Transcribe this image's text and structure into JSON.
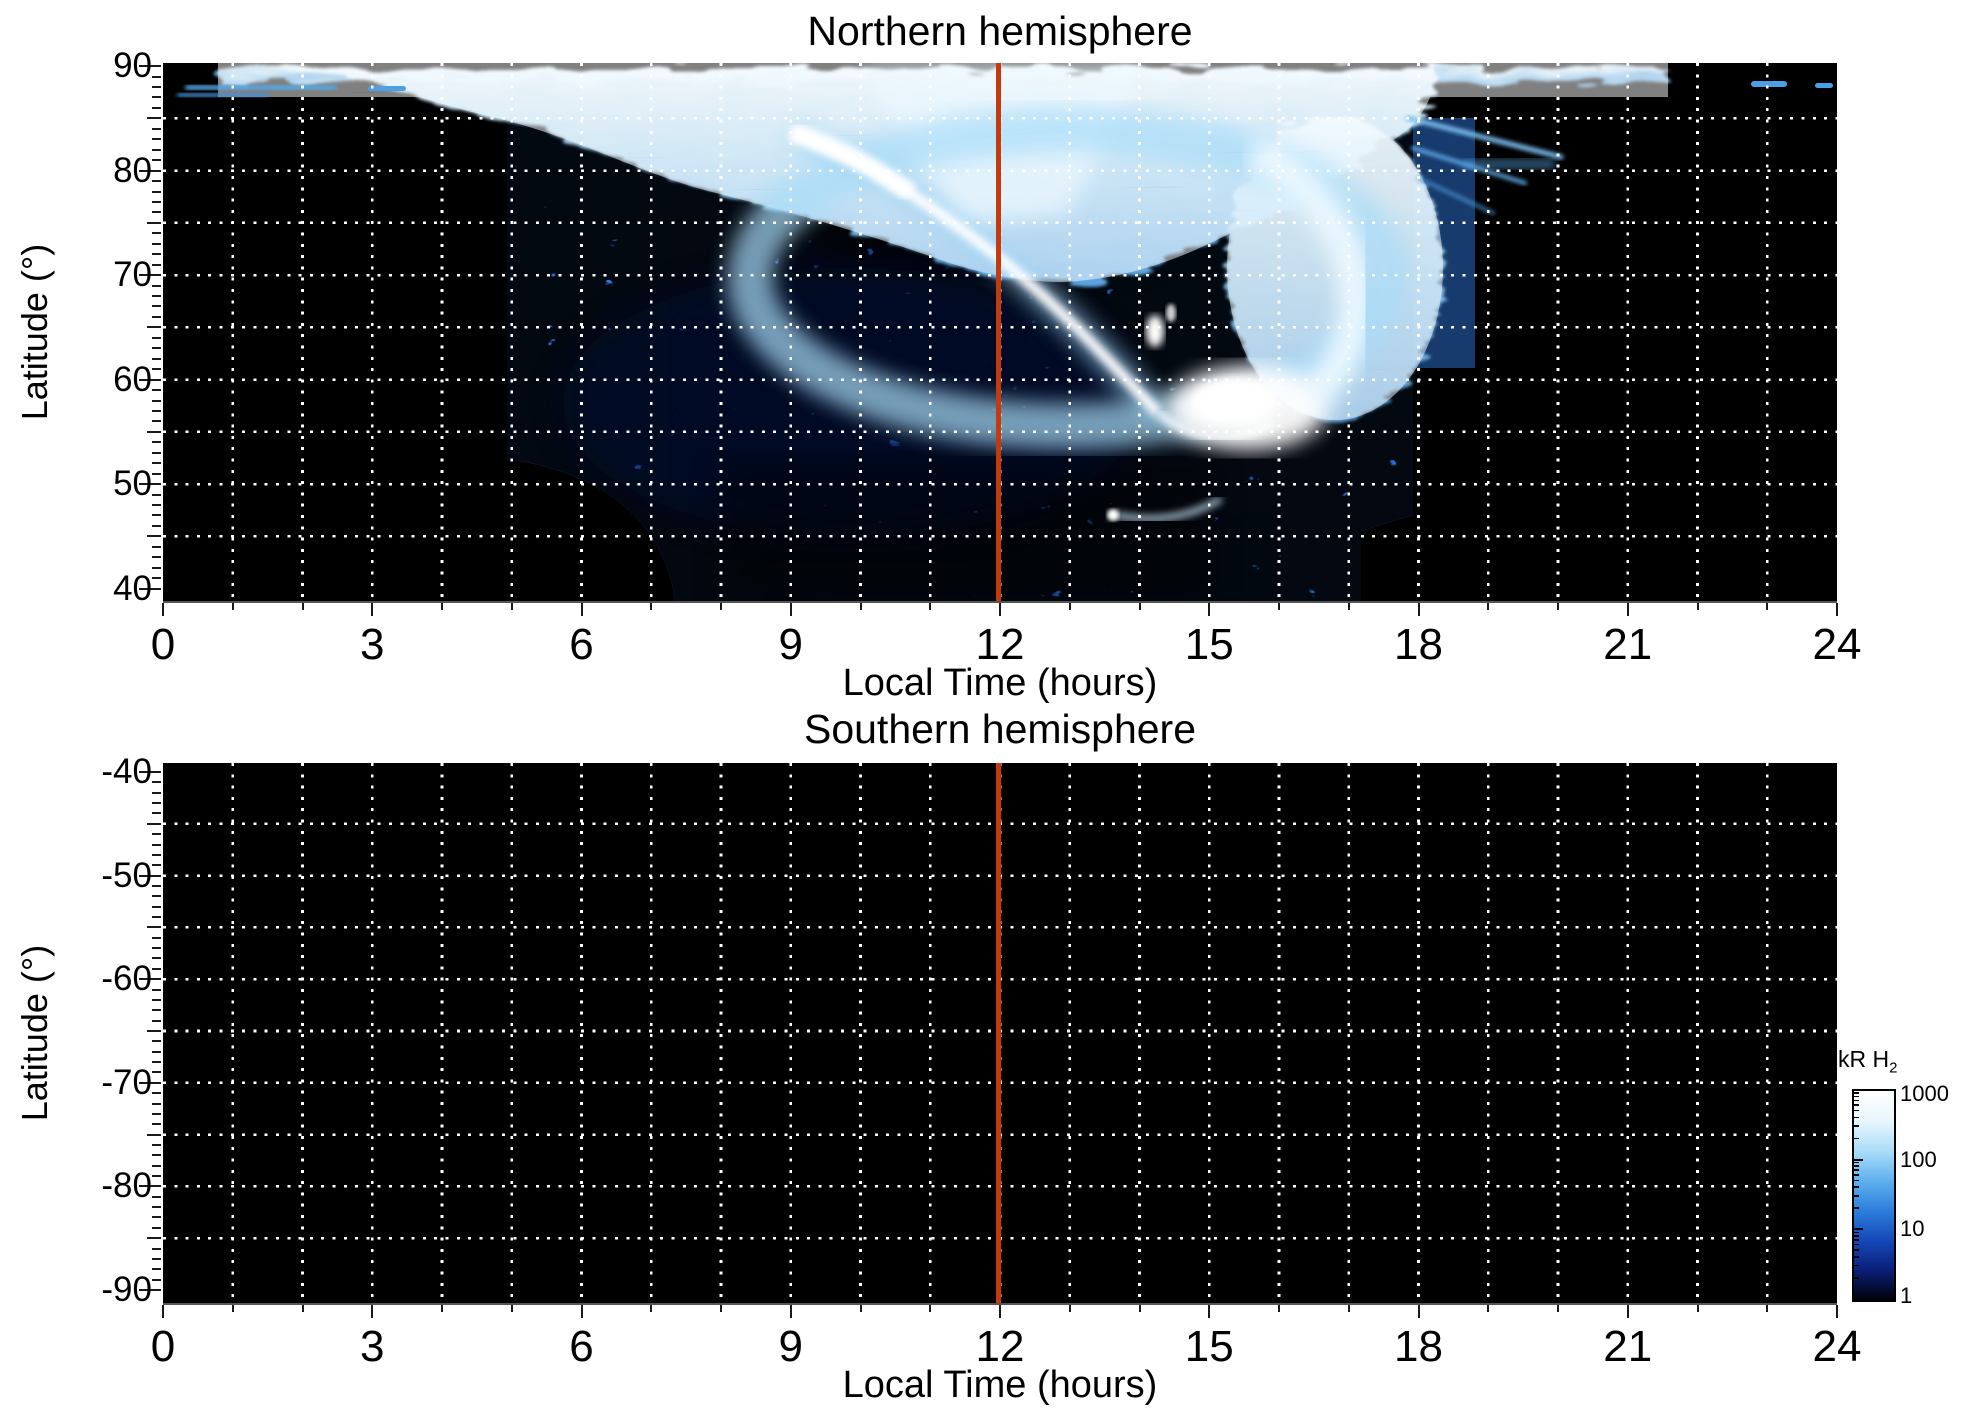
{
  "north_panel": {
    "title": "Northern hemisphere",
    "xlabel": "Local Time (hours)",
    "ylabel": "Latitude (°)",
    "xtick_labels": [
      "0",
      "3",
      "6",
      "9",
      "12",
      "15",
      "18",
      "21",
      "24"
    ],
    "ytick_labels": [
      "90",
      "80",
      "70",
      "60",
      "50",
      "40"
    ]
  },
  "south_panel": {
    "title": "Southern hemisphere",
    "xlabel": "Local Time (hours)",
    "ylabel": "Latitude (°)",
    "xtick_labels": [
      "0",
      "3",
      "6",
      "9",
      "12",
      "15",
      "18",
      "21",
      "24"
    ],
    "ytick_labels": [
      "-40",
      "-50",
      "-60",
      "-70",
      "-80",
      "-90"
    ]
  },
  "colorbar": {
    "title_main": "kR H",
    "title_sub": "2",
    "tick_labels": [
      "1000",
      "100",
      "10",
      "1"
    ]
  },
  "chart_data": {
    "type": "heatmap",
    "panels": [
      {
        "title": "Northern hemisphere",
        "xlabel": "Local Time (hours)",
        "ylabel": "Latitude (°)",
        "x_range_hours": [
          0,
          24
        ],
        "y_range_deg": [
          40,
          90
        ],
        "xticks": [
          0,
          3,
          6,
          9,
          12,
          15,
          18,
          21,
          24
        ],
        "yticks": [
          90,
          80,
          70,
          60,
          50,
          40
        ],
        "grid": {
          "vertical_every_hours": 1,
          "horizontal_every_deg": 5,
          "style": "dotted white"
        },
        "marker_line": {
          "x_hours": 12,
          "color": "#c53a0c"
        },
        "background": "black (emission below colorbar minimum)",
        "features": [
          "diffuse polar-cap emission band covering ~85-90° latitude at all local times, 100-1000 kR",
          "speckled 1-100 kR emission wedge between ~5 h and ~17.5 h local time extending down to 40°",
          "bright white auroral arc descending from ~9.3 h, 82° to ~14 h, 57°",
          "intense ~1000 kR white patch near 15-16 h, 55-62° with hook-shaped extension",
          "auroral-oval ring of enhanced emission spanning ~10-17 h, 55-82°, brightest on its duskside rim",
          "small bright spot at ~14.2 h, 65°",
          "faint thin arc near 14-15.5 h, ~48°",
          "dark (sub-threshold) regions: 0-5 h below 85°, 18-24 h below 85°, and a rounded black notch near 5-7 h below 52°"
        ]
      },
      {
        "title": "Southern hemisphere",
        "xlabel": "Local Time (hours)",
        "ylabel": "Latitude (°)",
        "x_range_hours": [
          0,
          24
        ],
        "y_range_deg": [
          -90,
          -40
        ],
        "xticks": [
          0,
          3,
          6,
          9,
          12,
          15,
          18,
          21,
          24
        ],
        "yticks": [
          -40,
          -50,
          -60,
          -70,
          -80,
          -90
        ],
        "grid": {
          "vertical_every_hours": 1,
          "horizontal_every_deg": 5,
          "style": "dotted white"
        },
        "marker_line": {
          "x_hours": 12,
          "color": "#c53a0c"
        },
        "background": "entirely black — no emission above colorbar minimum",
        "features": []
      }
    ],
    "colorbar": {
      "label": "kR H2",
      "scale": "log",
      "range": [
        1,
        1000
      ],
      "ticks": [
        1000,
        100,
        10,
        1
      ],
      "colors_top_to_bottom": [
        "#ffffff",
        "#e9f6fe",
        "#abddf8",
        "#5fb1ee",
        "#2d7fdc",
        "#1548b8",
        "#0a1f78",
        "#01010a"
      ]
    },
    "grid_color": "#ffffff",
    "noon_marker_color": "#c53a0c"
  }
}
